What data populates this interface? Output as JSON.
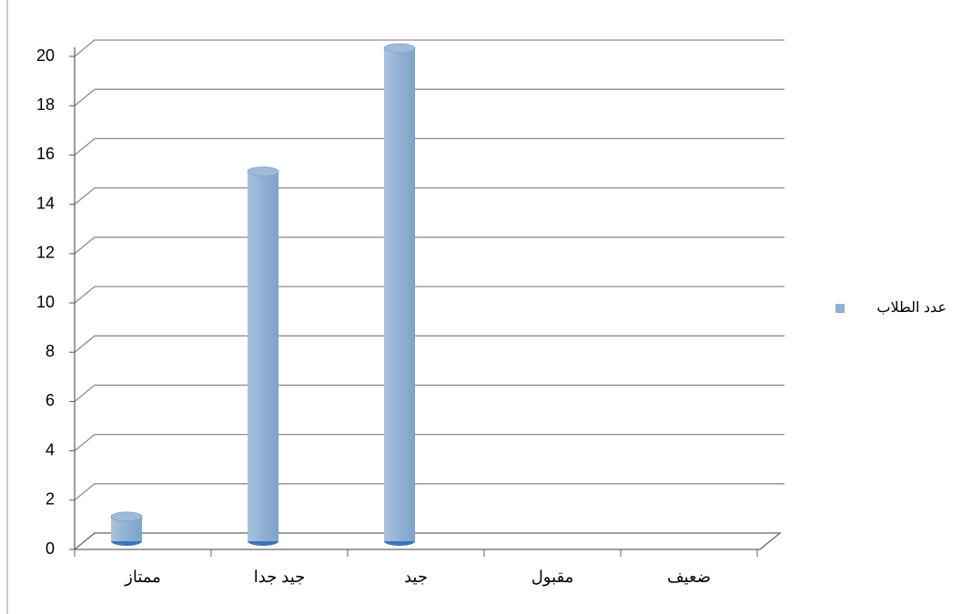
{
  "chart_data": {
    "type": "bar",
    "categories": [
      "ممتاز",
      "جيد جدا",
      "جيد",
      "مقبول",
      "ضعيف"
    ],
    "series": [
      {
        "name": "عدد الطلاب",
        "color": "#8fb1d3",
        "values": [
          1,
          15,
          20,
          0,
          0
        ]
      }
    ],
    "ylim": [
      0,
      20
    ],
    "yticks": [
      0,
      2,
      4,
      6,
      8,
      10,
      12,
      14,
      16,
      18,
      20
    ],
    "grid": true,
    "legend": "right"
  }
}
